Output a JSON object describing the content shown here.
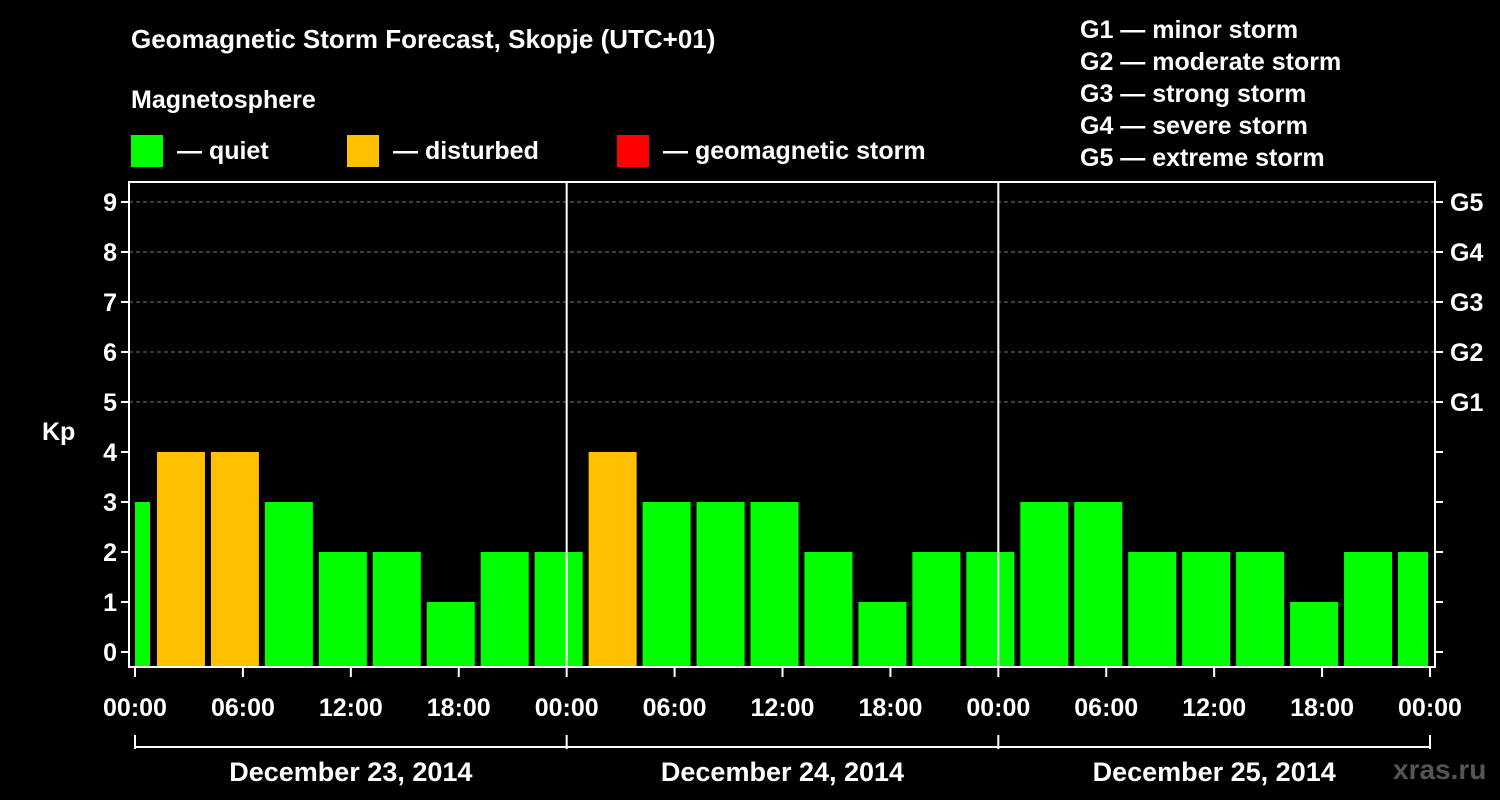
{
  "header": {
    "title": "Geomagnetic Storm Forecast, Skopje (UTC+01)",
    "magnetosphere_label": "Magnetosphere"
  },
  "legend": [
    {
      "label": "— quiet",
      "color": "#00ff00"
    },
    {
      "label": "— disturbed",
      "color": "#ffc000"
    },
    {
      "label": "— geomagnetic storm",
      "color": "#ff0000"
    }
  ],
  "g_scale": [
    "G1 — minor storm",
    "G2 — moderate storm",
    "G3 — strong storm",
    "G4 — severe storm",
    "G5 — extreme storm"
  ],
  "watermark": "xras.ru",
  "chart_data": {
    "type": "bar",
    "ylabel": "Kp",
    "ylim": [
      0,
      9
    ],
    "yticks": [
      "0",
      "1",
      "2",
      "3",
      "4",
      "5",
      "6",
      "7",
      "8",
      "9"
    ],
    "right_ticks": [
      {
        "kp": 5,
        "label": "G1"
      },
      {
        "kp": 6,
        "label": "G2"
      },
      {
        "kp": 7,
        "label": "G3"
      },
      {
        "kp": 8,
        "label": "G4"
      },
      {
        "kp": 9,
        "label": "G5"
      }
    ],
    "xtick_labels": [
      "00:00",
      "06:00",
      "12:00",
      "18:00",
      "00:00",
      "06:00",
      "12:00",
      "18:00",
      "00:00",
      "06:00",
      "12:00",
      "18:00",
      "00:00"
    ],
    "days": [
      "December 23, 2014",
      "December 24, 2014",
      "December 25, 2014"
    ],
    "grid": true,
    "colors": {
      "quiet": "#00ff00",
      "disturbed": "#ffc000",
      "storm": "#ff0000"
    },
    "values": [
      3,
      4,
      4,
      3,
      2,
      2,
      1,
      2,
      2,
      4,
      3,
      3,
      3,
      2,
      1,
      2,
      2,
      3,
      3,
      2,
      2,
      2,
      1,
      2,
      2
    ]
  }
}
